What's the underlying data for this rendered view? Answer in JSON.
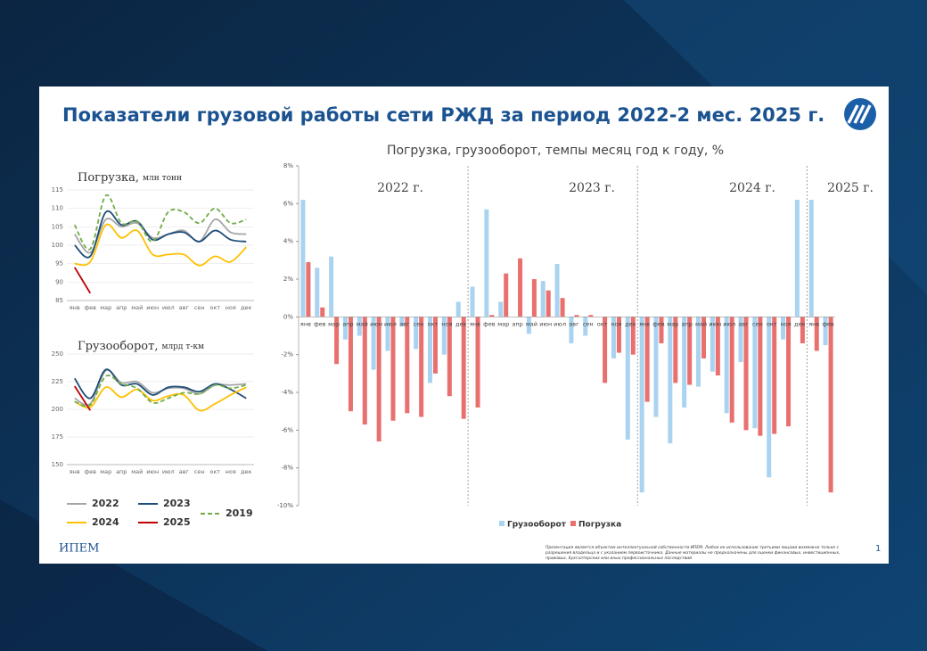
{
  "header": {
    "title": "Показатели грузовой работы сети РЖД за период 2022-2 мес. 2025 г."
  },
  "chart_data": [
    {
      "type": "line",
      "title": "Погрузка,",
      "unit": "млн тонн",
      "categories": [
        "янв",
        "фев",
        "мар",
        "апр",
        "май",
        "июн",
        "июл",
        "авг",
        "сен",
        "окт",
        "ноя",
        "дек"
      ],
      "ylim": [
        85,
        115
      ],
      "yticks": [
        85,
        90,
        95,
        100,
        105,
        110,
        115
      ],
      "series": [
        {
          "name": "2022",
          "color": "#a6a6a6",
          "values": [
            103,
            98,
            107,
            105,
            106,
            102,
            103,
            104,
            101,
            107,
            103.5,
            103
          ]
        },
        {
          "name": "2023",
          "color": "#1f4e79",
          "values": [
            100,
            97,
            109,
            105.5,
            106.5,
            101.5,
            103,
            103.5,
            101,
            104,
            101.5,
            101
          ]
        },
        {
          "name": "2024",
          "color": "#ffc000",
          "values": [
            95,
            95.5,
            105.5,
            102,
            104,
            97.5,
            97.5,
            97.5,
            94.5,
            97,
            95.5,
            99.5
          ]
        },
        {
          "name": "2025",
          "color": "#c00000",
          "values": [
            94,
            87,
            null,
            null,
            null,
            null,
            null,
            null,
            null,
            null,
            null,
            null
          ]
        },
        {
          "name": "2019",
          "color": "#70ad47",
          "dashed": true,
          "values": [
            105.5,
            99,
            113.5,
            106,
            106.5,
            101,
            109,
            109,
            106,
            110,
            106,
            107
          ]
        }
      ]
    },
    {
      "type": "line",
      "title": "Грузооборот,",
      "unit": "млрд т-км",
      "categories": [
        "янв",
        "фев",
        "мар",
        "апр",
        "май",
        "июн",
        "июл",
        "авг",
        "сен",
        "окт",
        "ноя",
        "дек"
      ],
      "ylim": [
        150,
        250
      ],
      "yticks": [
        150,
        175,
        200,
        225,
        250
      ],
      "series": [
        {
          "color": "#a6a6a6",
          "values": [
            210,
            205,
            235,
            224,
            225,
            215,
            219,
            219,
            214,
            222,
            222,
            223
          ]
        },
        {
          "color": "#1f4e79",
          "values": [
            228,
            210,
            236,
            222,
            223,
            213,
            220,
            220,
            216,
            223,
            218,
            210
          ]
        },
        {
          "color": "#ffc000",
          "values": [
            207,
            202,
            220,
            211,
            218,
            208,
            212,
            213,
            199,
            205,
            213,
            220
          ]
        },
        {
          "color": "#c00000",
          "values": [
            221,
            199,
            null,
            null,
            null,
            null,
            null,
            null,
            null,
            null,
            null,
            null
          ]
        },
        {
          "color": "#70ad47",
          "dashed": true,
          "values": [
            207,
            204,
            230,
            223,
            219,
            206,
            210,
            215,
            214,
            222,
            219,
            222
          ]
        }
      ]
    },
    {
      "type": "bar",
      "title": "Погрузка, грузооборот, темпы месяц год к году, %",
      "annotations": [
        "2022 г.",
        "2023 г.",
        "2024 г.",
        "2025 г."
      ],
      "categories": [
        "янв",
        "фев",
        "мар",
        "апр",
        "май",
        "июн",
        "июл",
        "авг",
        "сен",
        "окт",
        "ноя",
        "дек",
        "янв",
        "фев",
        "мар",
        "апр",
        "май",
        "июн",
        "июл",
        "авг",
        "сен",
        "окт",
        "ноя",
        "дек",
        "янв",
        "фев",
        "мар",
        "апр",
        "май",
        "июн",
        "июл",
        "авг",
        "сен",
        "окт",
        "ноя",
        "дек",
        "янв",
        "фев"
      ],
      "ylim": [
        -10,
        8
      ],
      "yticks": [
        {
          "value": -10,
          "label": "-10%"
        },
        {
          "value": -8,
          "label": "-8%"
        },
        {
          "value": -6,
          "label": "-6%"
        },
        {
          "value": -4,
          "label": "-4%"
        },
        {
          "value": -2,
          "label": "-2%"
        },
        {
          "value": 0,
          "label": "0%"
        },
        {
          "value": 2,
          "label": "2%"
        },
        {
          "value": 4,
          "label": "4%"
        },
        {
          "value": 6,
          "label": "6%"
        },
        {
          "value": 8,
          "label": "8%"
        }
      ],
      "series": [
        {
          "name": "Грузооборот",
          "color": "#a9d3f0",
          "values": [
            6.2,
            2.6,
            3.2,
            -1.2,
            -1.0,
            -2.8,
            -1.8,
            -0.5,
            -1.7,
            -3.5,
            -2.0,
            0.8,
            1.6,
            5.7,
            0.8,
            0.0,
            -0.9,
            1.9,
            2.8,
            -1.4,
            -1.0,
            0.0,
            -2.2,
            -6.5,
            -9.3,
            -5.3,
            -6.7,
            -4.8,
            -3.7,
            -2.9,
            -5.1,
            -2.4,
            -5.9,
            -8.5,
            -1.2,
            6.2,
            6.2,
            -1.5
          ]
        },
        {
          "name": "Погрузка",
          "color": "#e8706e",
          "values": [
            2.9,
            0.5,
            -2.5,
            -5.0,
            -5.7,
            -6.6,
            -5.5,
            -5.1,
            -5.3,
            -3.0,
            -4.2,
            -5.4,
            -4.8,
            0.1,
            2.3,
            3.1,
            2.0,
            1.4,
            1.0,
            0.1,
            0.1,
            -3.5,
            -1.9,
            -2.0,
            -4.5,
            -1.4,
            -3.5,
            -3.6,
            -2.2,
            -3.1,
            -5.6,
            -6.0,
            -6.3,
            -6.2,
            -5.8,
            -1.4,
            -1.8,
            -9.3
          ]
        }
      ]
    }
  ],
  "footer": {
    "brand": "ИПЕМ",
    "page": "1",
    "disclaimer": "Презентация является объектом интеллектуальной собственности ИПЕМ. Любое ее использование третьими лицами возможно только с разрешения владельца и с указанием первоисточника. Данные материалы не предназначены для оценки финансовых, инвестиционных, правовых, бухгалтерских или иных профессиональных последствий"
  }
}
